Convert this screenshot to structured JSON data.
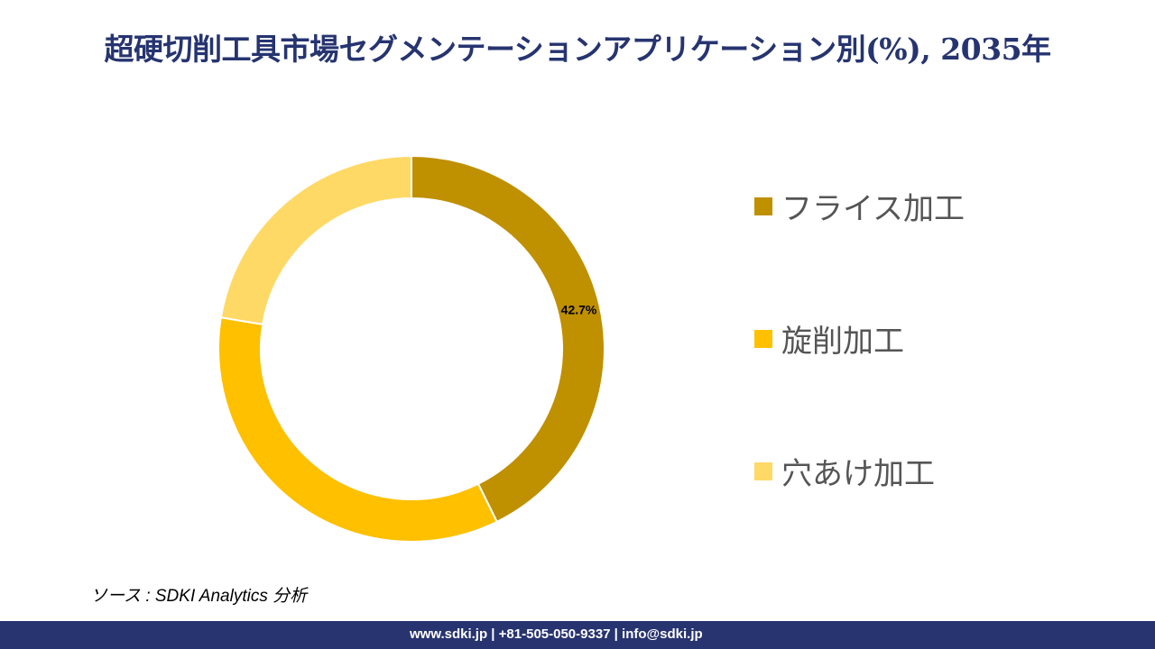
{
  "title": "超硬切削工具市場セグメンテーションアプリケーション別(%), 2035年",
  "chart_data": {
    "type": "pie",
    "donut": true,
    "title": "超硬切削工具市場セグメンテーションアプリケーション別(%), 2035年",
    "categories": [
      "フライス加工",
      "旋削加工",
      "穴あけ加工"
    ],
    "values": [
      42.7,
      34.9,
      22.4
    ],
    "data_labels": [
      "42.7%",
      "",
      ""
    ],
    "colors": [
      "#BF9000",
      "#FFC000",
      "#FFD966"
    ],
    "legend_position": "right"
  },
  "source": "ソース : SDKI Analytics 分析",
  "footer": "www.sdki.jp | +81-505-050-9337 | info@sdki.jp"
}
